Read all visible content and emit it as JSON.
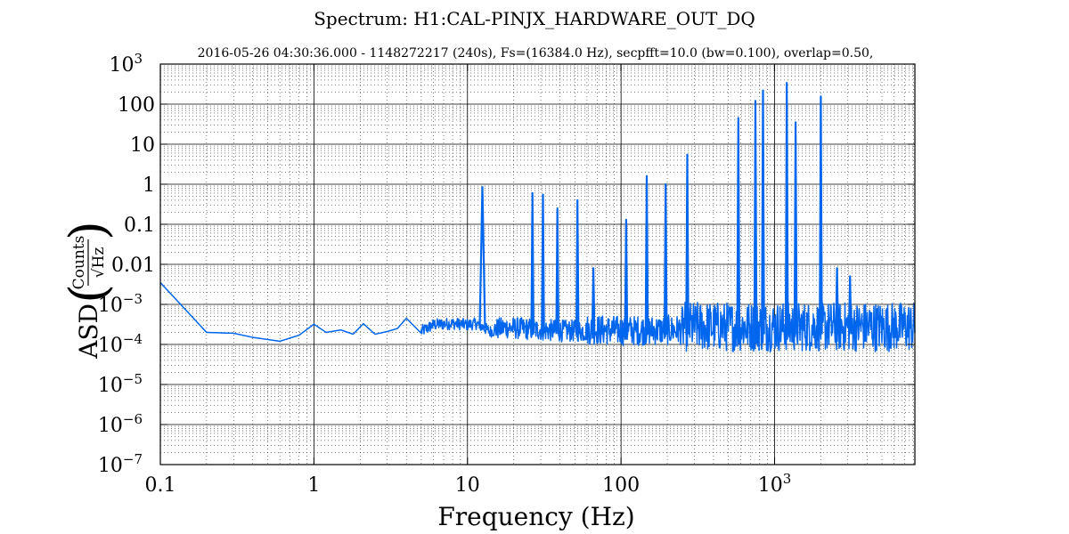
{
  "chart_data": {
    "type": "line",
    "title": "Spectrum: H1:CAL-PINJX_HARDWARE_OUT_DQ",
    "subtitle": "2016-05-26 04:30:36.000 - 1148272217 (240s), Fs=(16384.0 Hz), secpfft=10.0 (bw=0.100), overlap=0.50,",
    "xlabel": "Frequency (Hz)",
    "ylabel": {
      "prefix": "ASD",
      "numerator": "Counts",
      "denominator": "√Hz"
    },
    "x_scale": "log",
    "y_scale": "log",
    "xlim": [
      0.1,
      8192
    ],
    "ylim": [
      1e-07,
      1000
    ],
    "grid": true,
    "line_color": "#0066ee",
    "x_ticks": [
      {
        "value": 0.1,
        "label": "0.1",
        "sup": ""
      },
      {
        "value": 1,
        "label": "1",
        "sup": ""
      },
      {
        "value": 10,
        "label": "10",
        "sup": ""
      },
      {
        "value": 100,
        "label": "100",
        "sup": ""
      },
      {
        "value": 1000,
        "label": "10",
        "sup": "3"
      }
    ],
    "y_ticks": [
      {
        "value": 1000,
        "label": "10",
        "sup": "3"
      },
      {
        "value": 100,
        "label": "100",
        "sup": ""
      },
      {
        "value": 10,
        "label": "10",
        "sup": ""
      },
      {
        "value": 1,
        "label": "1",
        "sup": ""
      },
      {
        "value": 0.1,
        "label": "0.1",
        "sup": ""
      },
      {
        "value": 0.01,
        "label": "0.01",
        "sup": ""
      },
      {
        "value": 0.001,
        "label": "10",
        "sup": "−3"
      },
      {
        "value": 0.0001,
        "label": "10",
        "sup": "−4"
      },
      {
        "value": 1e-05,
        "label": "10",
        "sup": "−5"
      },
      {
        "value": 1e-06,
        "label": "10",
        "sup": "−6"
      },
      {
        "value": 1e-07,
        "label": "10",
        "sup": "−7"
      }
    ],
    "series": [
      {
        "baseline": [
          [
            0.1,
            0.0035
          ],
          [
            0.2,
            0.0002
          ],
          [
            0.3,
            0.00019
          ],
          [
            0.4,
            0.00015
          ],
          [
            0.6,
            0.00012
          ],
          [
            0.8,
            0.00017
          ],
          [
            1.0,
            0.00032
          ],
          [
            1.2,
            0.0002
          ],
          [
            1.5,
            0.00023
          ],
          [
            1.8,
            0.00018
          ],
          [
            2.1,
            0.00033
          ],
          [
            2.5,
            0.00018
          ],
          [
            3.0,
            0.00021
          ],
          [
            3.5,
            0.00025
          ],
          [
            4.0,
            0.00045
          ],
          [
            5.0,
            0.00019
          ],
          [
            6.0,
            0.00028
          ],
          [
            8.0,
            0.0003
          ],
          [
            10.0,
            0.00028
          ],
          [
            11.5,
            0.0003
          ],
          [
            14.0,
            0.00019
          ],
          [
            18.0,
            0.00022
          ],
          [
            25.0,
            0.0002
          ],
          [
            40.0,
            0.00018
          ],
          [
            70.0,
            0.00018
          ],
          [
            100.0,
            0.00017
          ],
          [
            300.0,
            0.00018
          ],
          [
            1000.0,
            0.00018
          ],
          [
            8192.0,
            0.00018
          ]
        ],
        "peaks": [
          {
            "f": 12.5,
            "a": 0.85
          },
          {
            "f": 26.5,
            "a": 0.6
          },
          {
            "f": 31.0,
            "a": 0.55
          },
          {
            "f": 38.5,
            "a": 0.25
          },
          {
            "f": 52.0,
            "a": 0.4
          },
          {
            "f": 66.0,
            "a": 0.008
          },
          {
            "f": 108.0,
            "a": 0.13
          },
          {
            "f": 147.0,
            "a": 1.6
          },
          {
            "f": 195.0,
            "a": 1.0
          },
          {
            "f": 270.0,
            "a": 5.5
          },
          {
            "f": 580.0,
            "a": 45
          },
          {
            "f": 750.0,
            "a": 120
          },
          {
            "f": 840.0,
            "a": 220
          },
          {
            "f": 1200.0,
            "a": 340
          },
          {
            "f": 1370.0,
            "a": 35
          },
          {
            "f": 2000.0,
            "a": 155
          },
          {
            "f": 2550.0,
            "a": 0.008
          },
          {
            "f": 3100.0,
            "a": 0.005
          }
        ]
      }
    ]
  }
}
